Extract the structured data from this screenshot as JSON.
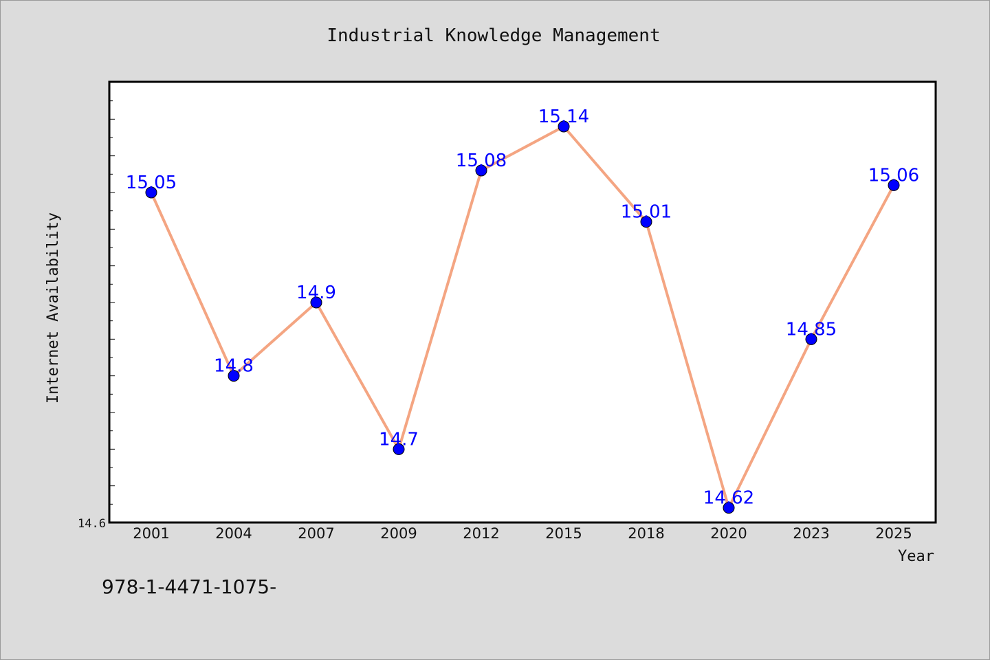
{
  "chart_data": {
    "type": "line",
    "title": "Industrial Knowledge Management",
    "xlabel": "Year",
    "ylabel": "Internet Availability",
    "categories": [
      "2001",
      "2004",
      "2007",
      "2009",
      "2012",
      "2015",
      "2018",
      "2020",
      "2023",
      "2025"
    ],
    "series": [
      {
        "values": [
          15.05,
          14.8,
          14.9,
          14.7,
          15.08,
          15.14,
          15.01,
          14.62,
          14.85,
          15.06
        ]
      }
    ],
    "data_labels": [
      "15.05",
      "14.8",
      "14.9",
      "14.7",
      "15.08",
      "15.14",
      "15.01",
      "14.62",
      "14.85",
      "15.06"
    ],
    "ylim": [
      14.6,
      15.2
    ],
    "ytick_labels": [
      "14.6"
    ],
    "grid": false,
    "legend": "none",
    "colors": {
      "line": "#f4a582",
      "marker": "#0000ff",
      "data_label": "#0000ff",
      "plot_background": "#ffffff",
      "figure_background": "#dcdcdc"
    }
  },
  "footer": "978-1-4471-1075-"
}
